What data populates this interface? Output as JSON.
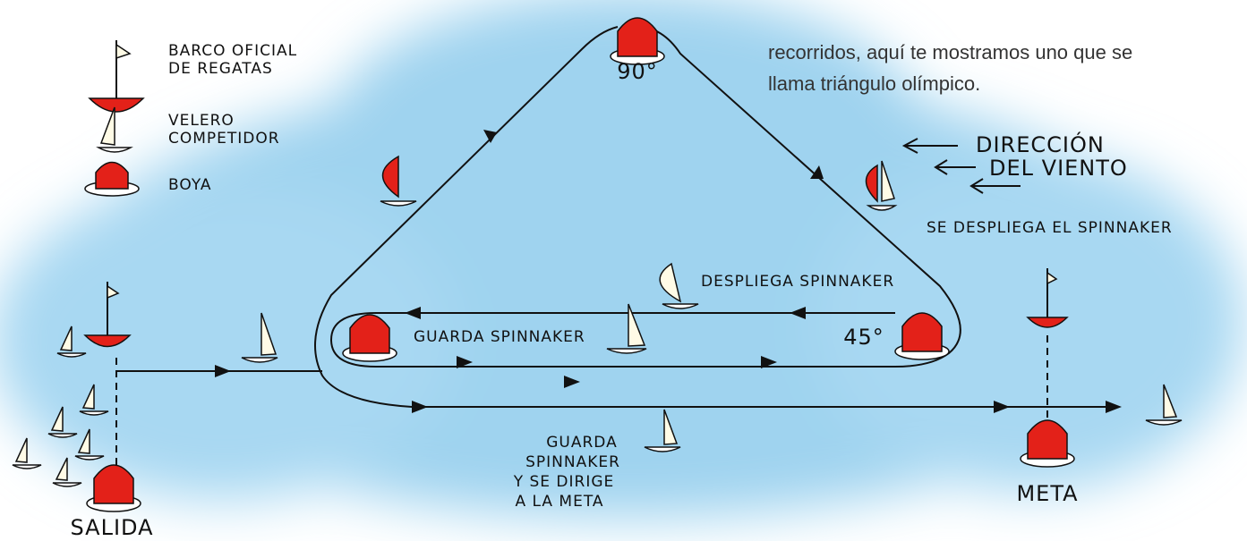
{
  "intro": {
    "lines": [
      "recorridos, aquí te mostramos uno que se",
      "llama triángulo olímpico."
    ]
  },
  "legend": {
    "items": [
      {
        "label_lines": [
          "BARCO OFICIAL",
          "DE REGATAS"
        ]
      },
      {
        "label_lines": [
          "VELERO",
          "COMPETIDOR"
        ]
      },
      {
        "label_lines": [
          "BOYA"
        ]
      }
    ]
  },
  "marks": {
    "top_angle": "90°",
    "right_angle": "45°",
    "start": "SALIDA",
    "finish": "META"
  },
  "annotations": {
    "wind": [
      "DIRECCIÓN",
      "DEL VIENTO"
    ],
    "deploy_spinnaker_top": "SE DESPLIEGA EL SPINNAKER",
    "deploy_spinnaker": "DESPLIEGA SPINNAKER",
    "stow_spinnaker": "GUARDA SPINNAKER",
    "stow_and_finish": [
      "GUARDA",
      "SPINNAKER",
      "Y SE DIRIGE",
      "A LA META"
    ]
  }
}
